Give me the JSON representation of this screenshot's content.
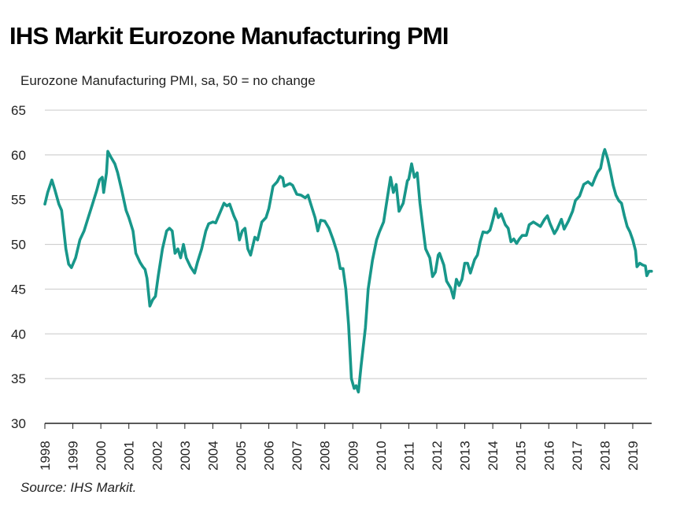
{
  "chart_data": {
    "type": "line",
    "title": "IHS Markit Eurozone Manufacturing PMI",
    "subtitle": "Eurozone Manufacturing PMI, sa, 50 = no change",
    "source": "Source: IHS Markit.",
    "xlabel": "",
    "ylabel": "",
    "ylim": [
      30,
      65
    ],
    "yticks": [
      "30",
      "35",
      "40",
      "45",
      "50",
      "55",
      "60",
      "65"
    ],
    "xlim": [
      1998,
      2019.75
    ],
    "xticks": [
      "1998",
      "1999",
      "2000",
      "2001",
      "2002",
      "2003",
      "2004",
      "2005",
      "2006",
      "2007",
      "2008",
      "2009",
      "2010",
      "2011",
      "2012",
      "2013",
      "2014",
      "2015",
      "2016",
      "2017",
      "2018",
      "2019"
    ],
    "grid": true,
    "line_color": "#18978a",
    "series": [
      {
        "name": "Eurozone Manufacturing PMI",
        "points": [
          [
            1998.0,
            54.5
          ],
          [
            1998.1,
            55.8
          ],
          [
            1998.25,
            57.2
          ],
          [
            1998.35,
            56.2
          ],
          [
            1998.5,
            54.5
          ],
          [
            1998.6,
            53.8
          ],
          [
            1998.75,
            49.5
          ],
          [
            1998.85,
            47.8
          ],
          [
            1998.95,
            47.4
          ],
          [
            1999.1,
            48.5
          ],
          [
            1999.25,
            50.5
          ],
          [
            1999.4,
            51.5
          ],
          [
            1999.55,
            53
          ],
          [
            1999.7,
            54.5
          ],
          [
            1999.85,
            56
          ],
          [
            1999.95,
            57.2
          ],
          [
            2000.05,
            57.5
          ],
          [
            2000.1,
            55.8
          ],
          [
            2000.2,
            58
          ],
          [
            2000.25,
            60.4
          ],
          [
            2000.35,
            59.8
          ],
          [
            2000.5,
            59
          ],
          [
            2000.6,
            58
          ],
          [
            2000.75,
            56
          ],
          [
            2000.9,
            53.8
          ],
          [
            2001.0,
            53
          ],
          [
            2001.15,
            51.5
          ],
          [
            2001.25,
            49
          ],
          [
            2001.4,
            48
          ],
          [
            2001.5,
            47.5
          ],
          [
            2001.58,
            47.2
          ],
          [
            2001.65,
            46.2
          ],
          [
            2001.75,
            43.1
          ],
          [
            2001.85,
            43.8
          ],
          [
            2001.95,
            44.2
          ],
          [
            2002.05,
            46.5
          ],
          [
            2002.2,
            49.5
          ],
          [
            2002.35,
            51.5
          ],
          [
            2002.45,
            51.8
          ],
          [
            2002.55,
            51.5
          ],
          [
            2002.65,
            49
          ],
          [
            2002.75,
            49.5
          ],
          [
            2002.85,
            48.5
          ],
          [
            2002.95,
            50
          ],
          [
            2003.05,
            48.5
          ],
          [
            2003.2,
            47.5
          ],
          [
            2003.35,
            46.8
          ],
          [
            2003.45,
            48
          ],
          [
            2003.6,
            49.5
          ],
          [
            2003.75,
            51.5
          ],
          [
            2003.85,
            52.3
          ],
          [
            2004.0,
            52.5
          ],
          [
            2004.1,
            52.4
          ],
          [
            2004.25,
            53.5
          ],
          [
            2004.4,
            54.6
          ],
          [
            2004.5,
            54.3
          ],
          [
            2004.6,
            54.5
          ],
          [
            2004.75,
            53.2
          ],
          [
            2004.85,
            52.5
          ],
          [
            2004.95,
            50.5
          ],
          [
            2005.05,
            51.5
          ],
          [
            2005.15,
            51.8
          ],
          [
            2005.25,
            49.5
          ],
          [
            2005.35,
            48.8
          ],
          [
            2005.5,
            50.8
          ],
          [
            2005.6,
            50.5
          ],
          [
            2005.75,
            52.5
          ],
          [
            2005.9,
            53
          ],
          [
            2006.0,
            54
          ],
          [
            2006.15,
            56.5
          ],
          [
            2006.3,
            57
          ],
          [
            2006.4,
            57.6
          ],
          [
            2006.5,
            57.4
          ],
          [
            2006.55,
            56.5
          ],
          [
            2006.75,
            56.8
          ],
          [
            2006.85,
            56.6
          ],
          [
            2007.0,
            55.6
          ],
          [
            2007.15,
            55.5
          ],
          [
            2007.3,
            55.2
          ],
          [
            2007.4,
            55.5
          ],
          [
            2007.5,
            54.5
          ],
          [
            2007.65,
            53
          ],
          [
            2007.75,
            51.5
          ],
          [
            2007.85,
            52.7
          ],
          [
            2008.0,
            52.6
          ],
          [
            2008.15,
            51.8
          ],
          [
            2008.3,
            50.5
          ],
          [
            2008.45,
            49
          ],
          [
            2008.55,
            47.3
          ],
          [
            2008.65,
            47.3
          ],
          [
            2008.75,
            45
          ],
          [
            2008.85,
            41
          ],
          [
            2008.95,
            35
          ],
          [
            2009.05,
            33.9
          ],
          [
            2009.12,
            34.2
          ],
          [
            2009.2,
            33.5
          ],
          [
            2009.3,
            36.5
          ],
          [
            2009.45,
            40.7
          ],
          [
            2009.55,
            45
          ],
          [
            2009.7,
            48.2
          ],
          [
            2009.85,
            50.5
          ],
          [
            2009.95,
            51.4
          ],
          [
            2010.1,
            52.5
          ],
          [
            2010.25,
            55.5
          ],
          [
            2010.35,
            57.5
          ],
          [
            2010.45,
            55.8
          ],
          [
            2010.55,
            56.7
          ],
          [
            2010.65,
            53.7
          ],
          [
            2010.8,
            54.6
          ],
          [
            2010.95,
            57.1
          ],
          [
            2011.0,
            57.3
          ],
          [
            2011.1,
            59.0
          ],
          [
            2011.2,
            57.5
          ],
          [
            2011.3,
            58
          ],
          [
            2011.4,
            54.6
          ],
          [
            2011.5,
            52
          ],
          [
            2011.6,
            49.5
          ],
          [
            2011.75,
            48.5
          ],
          [
            2011.85,
            46.4
          ],
          [
            2011.95,
            46.9
          ],
          [
            2012.05,
            48.8
          ],
          [
            2012.1,
            49
          ],
          [
            2012.25,
            47.7
          ],
          [
            2012.35,
            45.9
          ],
          [
            2012.5,
            45.1
          ],
          [
            2012.6,
            44.0
          ],
          [
            2012.7,
            46.1
          ],
          [
            2012.8,
            45.4
          ],
          [
            2012.9,
            46.1
          ],
          [
            2013.0,
            47.9
          ],
          [
            2013.1,
            47.9
          ],
          [
            2013.2,
            46.8
          ],
          [
            2013.35,
            48.3
          ],
          [
            2013.45,
            48.8
          ],
          [
            2013.55,
            50.3
          ],
          [
            2013.65,
            51.4
          ],
          [
            2013.8,
            51.3
          ],
          [
            2013.9,
            51.6
          ],
          [
            2014.0,
            52.7
          ],
          [
            2014.1,
            54
          ],
          [
            2014.2,
            53
          ],
          [
            2014.3,
            53.4
          ],
          [
            2014.45,
            52.2
          ],
          [
            2014.55,
            51.8
          ],
          [
            2014.65,
            50.3
          ],
          [
            2014.75,
            50.6
          ],
          [
            2014.85,
            50.1
          ],
          [
            2014.95,
            50.6
          ],
          [
            2015.05,
            51
          ],
          [
            2015.2,
            51
          ],
          [
            2015.3,
            52.2
          ],
          [
            2015.45,
            52.5
          ],
          [
            2015.55,
            52.3
          ],
          [
            2015.7,
            52.0
          ],
          [
            2015.85,
            52.8
          ],
          [
            2015.95,
            53.2
          ],
          [
            2016.05,
            52.3
          ],
          [
            2016.2,
            51.2
          ],
          [
            2016.3,
            51.7
          ],
          [
            2016.45,
            52.8
          ],
          [
            2016.55,
            51.7
          ],
          [
            2016.7,
            52.6
          ],
          [
            2016.85,
            53.7
          ],
          [
            2016.95,
            54.9
          ],
          [
            2017.1,
            55.4
          ],
          [
            2017.25,
            56.7
          ],
          [
            2017.4,
            57
          ],
          [
            2017.55,
            56.6
          ],
          [
            2017.65,
            57.4
          ],
          [
            2017.75,
            58.1
          ],
          [
            2017.85,
            58.5
          ],
          [
            2017.95,
            60.1
          ],
          [
            2018.0,
            60.6
          ],
          [
            2018.1,
            59.6
          ],
          [
            2018.2,
            58.2
          ],
          [
            2018.3,
            56.6
          ],
          [
            2018.4,
            55.5
          ],
          [
            2018.5,
            54.9
          ],
          [
            2018.6,
            54.6
          ],
          [
            2018.7,
            53.2
          ],
          [
            2018.8,
            52
          ],
          [
            2018.9,
            51.4
          ],
          [
            2019.0,
            50.5
          ],
          [
            2019.1,
            49.3
          ],
          [
            2019.15,
            47.5
          ],
          [
            2019.25,
            47.9
          ],
          [
            2019.35,
            47.7
          ],
          [
            2019.45,
            47.6
          ],
          [
            2019.5,
            46.5
          ],
          [
            2019.58,
            47.0
          ],
          [
            2019.67,
            47.0
          ]
        ]
      }
    ]
  }
}
